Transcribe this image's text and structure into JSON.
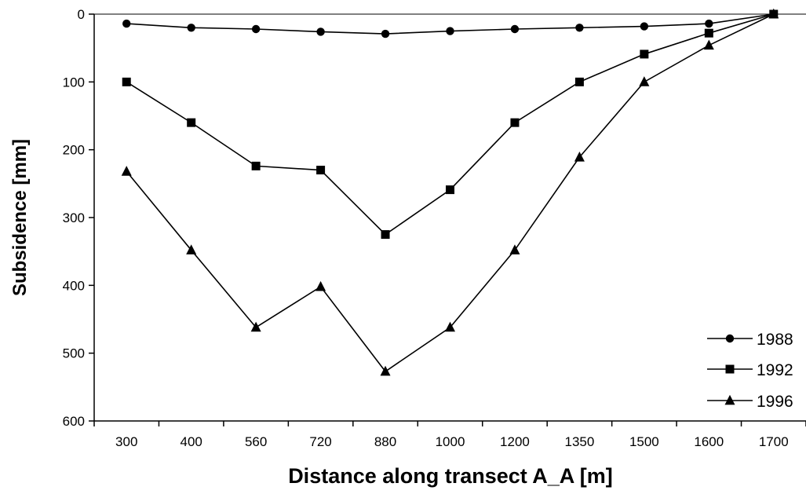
{
  "chart_data": {
    "type": "line",
    "title": "",
    "xlabel": "Distance along transect A_A [m]",
    "ylabel": "Subsidence [mm]",
    "categories": [
      "300",
      "400",
      "560",
      "720",
      "880",
      "1000",
      "1200",
      "1350",
      "1500",
      "1600",
      "1700"
    ],
    "y_ticks": [
      "0",
      "100",
      "200",
      "300",
      "400",
      "500",
      "600"
    ],
    "ylim": [
      0,
      600
    ],
    "y_inverted": true,
    "grid": false,
    "legend_position": "bottom-right",
    "series": [
      {
        "name": "1988",
        "marker": "circle",
        "values": [
          14,
          20,
          22,
          26,
          29,
          25,
          22,
          20,
          18,
          14,
          0
        ]
      },
      {
        "name": "1992",
        "marker": "square",
        "values": [
          100,
          160,
          224,
          230,
          325,
          259,
          160,
          100,
          59,
          28,
          0
        ]
      },
      {
        "name": "1996",
        "marker": "triangle",
        "values": [
          232,
          348,
          462,
          402,
          527,
          462,
          348,
          211,
          100,
          46,
          0
        ]
      }
    ]
  }
}
